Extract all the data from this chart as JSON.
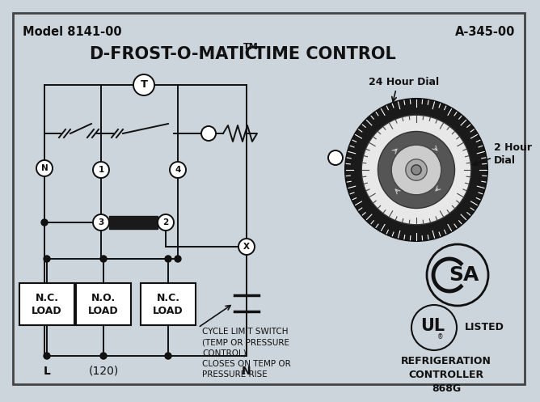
{
  "title_left": "Model 8141-00",
  "title_right": "A-345-00",
  "title_main": "D-FROST-O-MATIC",
  "title_tm": "TM",
  "title_main2": " TIME CONTROL",
  "bg_color": "#cdd5dc",
  "border_color": "#444444",
  "text_color": "#111111",
  "dark_bar_color": "#1a1a1a",
  "dial_label_24": "24 Hour Dial",
  "dial_label_2": "2 Hour\nDial",
  "load_labels": [
    "N.C.\nLOAD",
    "N.O.\nLOAD",
    "N.C.\nLOAD"
  ],
  "bottom_labels": [
    "L",
    "(120)",
    "N"
  ],
  "cycle_label": "CYCLE LIMIT SWITCH\n(TEMP OR PRESSURE\nCONTROL)\nCLOSES ON TEMP OR\nPRESSURE RISE",
  "refrig_label": "REFRIGERATION\nCONTROLLER\n868G",
  "ul_label": "LISTED"
}
